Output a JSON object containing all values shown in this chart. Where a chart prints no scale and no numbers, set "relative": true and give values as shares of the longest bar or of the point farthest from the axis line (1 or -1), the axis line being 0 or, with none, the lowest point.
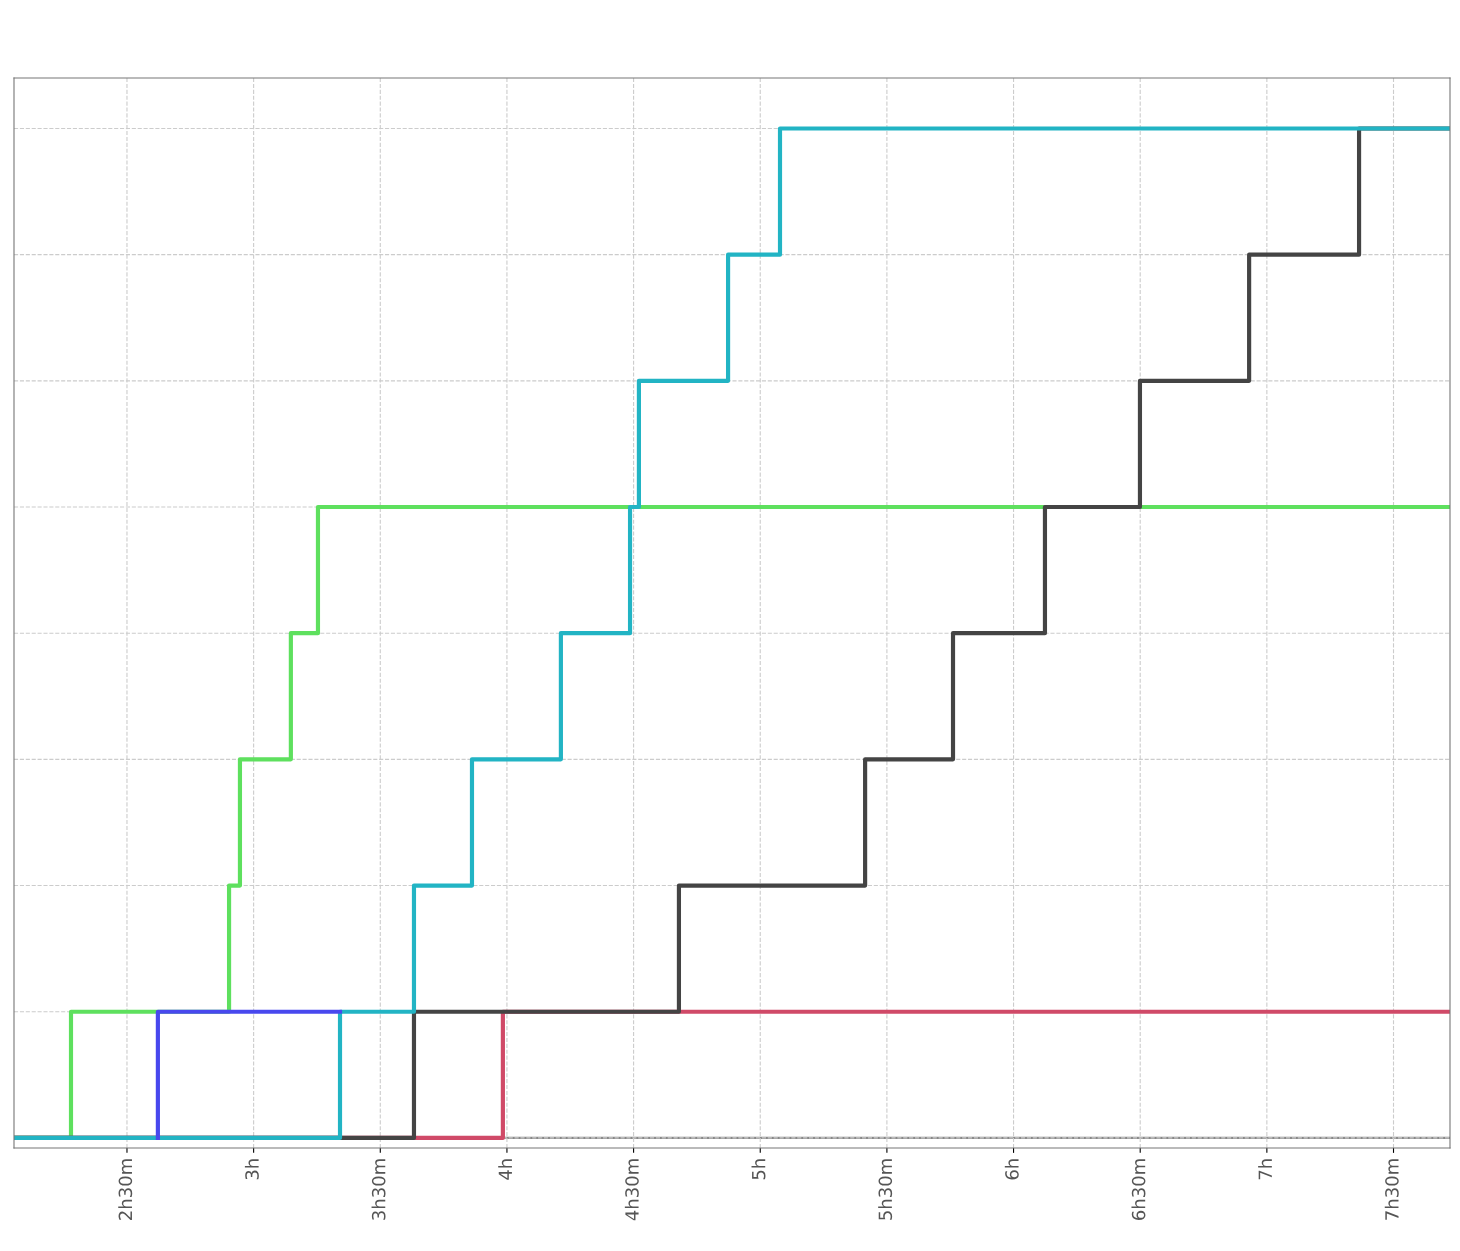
{
  "chart_data": {
    "type": "step",
    "relative": true,
    "grid": true,
    "marker": "none",
    "line_style": "solid",
    "xlim": [
      2.054,
      7.723
    ],
    "xticks": [
      {
        "value": 2.5,
        "label": "2h30m"
      },
      {
        "value": 3,
        "label": "3h"
      },
      {
        "value": 3.5,
        "label": "3h30m"
      },
      {
        "value": 4,
        "label": "4h"
      },
      {
        "value": 4.5,
        "label": "4h30m"
      },
      {
        "value": 5,
        "label": "5h"
      },
      {
        "value": 5.5,
        "label": "5h30m"
      },
      {
        "value": 6,
        "label": "6h"
      },
      {
        "value": 6.5,
        "label": "6h30m"
      },
      {
        "value": 7,
        "label": "7h"
      },
      {
        "value": 7.5,
        "label": "7h30m"
      }
    ],
    "series": [
      {
        "color": "#5ee05e",
        "x": [
          2.054,
          2.279,
          2.903,
          2.946,
          3.147,
          3.254,
          7.723
        ],
        "values": [
          0,
          0.125,
          0.25,
          0.375,
          0.5,
          0.625,
          0.625
        ]
      },
      {
        "color": "#d04a68",
        "x": [
          2.054,
          3.984,
          7.723
        ],
        "values": [
          0,
          0.125,
          0.125
        ]
      },
      {
        "color": "#444444",
        "x": [
          2.054,
          3.633,
          4.679,
          5.414,
          5.761,
          6.124,
          6.499,
          6.93,
          7.364,
          7.723
        ],
        "values": [
          0,
          0.125,
          0.25,
          0.375,
          0.5,
          0.625,
          0.75,
          0.875,
          1,
          1
        ]
      },
      {
        "color": "#22b4c4",
        "x": [
          2.054,
          3.341,
          3.633,
          3.862,
          4.213,
          4.486,
          4.521,
          4.873,
          5.078,
          7.723
        ],
        "values": [
          0,
          0.125,
          0.25,
          0.375,
          0.5,
          0.625,
          0.75,
          0.875,
          1,
          1
        ]
      },
      {
        "color": "#4848ee",
        "x": [
          2.622,
          2.622,
          3.341
        ],
        "values": [
          0,
          0.125,
          0.125
        ]
      }
    ]
  }
}
